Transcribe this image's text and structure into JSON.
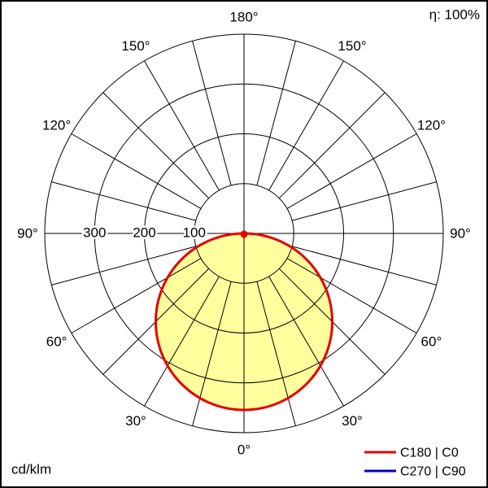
{
  "header": {
    "efficiency": "η: 100%"
  },
  "footer": {
    "unit": "cd/klm"
  },
  "legend": {
    "c0": {
      "label": "C180 | C0",
      "color": "#e60000"
    },
    "c90": {
      "label": "C270 | C90",
      "color": "#0000cc"
    }
  },
  "chart_style": {
    "fill": "#ffff9e"
  },
  "polar": {
    "angle_labels": [
      "180°",
      "150°",
      "150°",
      "120°",
      "120°",
      "90°",
      "90°",
      "60°",
      "60°",
      "30°",
      "30°",
      "0°"
    ],
    "radial_labels": [
      "300",
      "200",
      "100"
    ]
  },
  "chart_data": {
    "type": "line",
    "coordinate_system": "polar",
    "title": "Luminous intensity distribution (polar photometric diagram)",
    "units": "cd/klm",
    "angle_reference": "0° at bottom (nadir), 90° horizontal, 180° at top; labels mirrored left/right",
    "angle_grid_step_deg": 15,
    "angle_label_step_deg": 30,
    "radial_ticks": [
      100,
      200,
      300
    ],
    "radial_max": 400,
    "efficiency_percent": 100,
    "legend_position": "bottom-right",
    "series": [
      {
        "name": "C180 | C0",
        "color": "#e60000",
        "angles_deg": [
          -90,
          -75,
          -60,
          -45,
          -30,
          -15,
          0,
          15,
          30,
          45,
          60,
          75,
          90
        ],
        "values_cd_per_klm": [
          0,
          91,
          175,
          248,
          303,
          338,
          350,
          338,
          303,
          248,
          175,
          91,
          0
        ]
      },
      {
        "name": "C270 | C90",
        "color": "#0000cc",
        "angles_deg": [
          -90,
          -75,
          -60,
          -45,
          -30,
          -15,
          0,
          15,
          30,
          45,
          60,
          75,
          90
        ],
        "values_cd_per_klm": [
          0,
          91,
          175,
          248,
          303,
          338,
          350,
          338,
          303,
          248,
          175,
          91,
          0
        ],
        "note": "coincident with C180 | C0 curve (hidden beneath red curve)"
      }
    ]
  }
}
